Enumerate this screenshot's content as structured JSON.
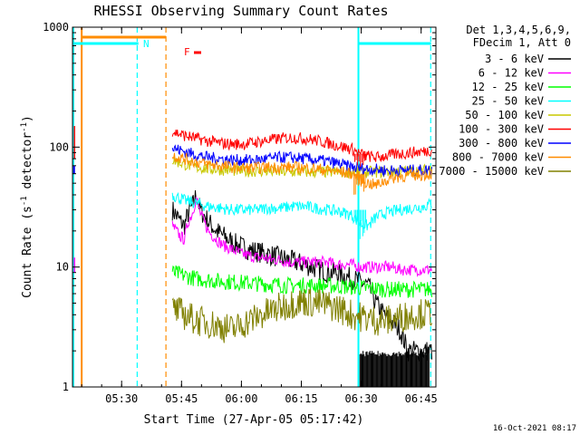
{
  "chart_data": {
    "type": "line",
    "title": "RHESSI Observing Summary Count Rates",
    "xlabel": "Start Time (27-Apr-05 05:17:42)",
    "ylabel_main": "Count Rate (s",
    "ylabel_sup1": "-1",
    "ylabel_mid": " detector",
    "ylabel_sup2": "-1",
    "ylabel_end": ")",
    "x_unit": "minutes after 05:17:42",
    "xlim": [
      0,
      91
    ],
    "ylim": [
      1,
      1000
    ],
    "yscale": "log",
    "x_ticks": [
      {
        "label": "05:30",
        "value": 12.3
      },
      {
        "label": "05:45",
        "value": 27.3
      },
      {
        "label": "06:00",
        "value": 42.3
      },
      {
        "label": "06:15",
        "value": 57.3
      },
      {
        "label": "06:30",
        "value": 72.3
      },
      {
        "label": "06:45",
        "value": 87.3
      }
    ],
    "y_ticks": [
      {
        "label": "1",
        "value": 1
      },
      {
        "label": "10",
        "value": 10
      },
      {
        "label": "100",
        "value": 100
      },
      {
        "label": "1000",
        "value": 1000
      }
    ],
    "legend_header": [
      "Det 1,3,4,5,6,9,",
      "FDecim 1, Att 0"
    ],
    "legend_position": "right",
    "timestamp": "16-Oct-2021 08:17",
    "annotations": [
      {
        "text": "N",
        "color": "#00ffff"
      },
      {
        "text": "F",
        "color": "#ff0000"
      }
    ],
    "series": [
      {
        "name": "3 - 6 keV",
        "color": "#000000",
        "x": [
          25,
          26,
          27,
          28,
          29,
          30,
          31,
          32,
          34,
          36,
          38,
          40,
          42,
          44,
          46,
          48,
          50,
          52,
          54,
          56,
          58,
          60,
          62,
          64,
          66,
          68,
          70,
          72,
          74,
          76,
          78,
          80,
          82,
          84,
          86,
          88,
          90
        ],
        "y": [
          30,
          27,
          24,
          22,
          28,
          32,
          40,
          30,
          24,
          20,
          18,
          16,
          15,
          14,
          13.5,
          13,
          12.5,
          12,
          11.5,
          11,
          10.5,
          10,
          9.5,
          9,
          9,
          8.5,
          8,
          7.5,
          7,
          5,
          4,
          3.5,
          3,
          2,
          2,
          2,
          2
        ]
      },
      {
        "name": "6 - 12 keV",
        "color": "#ff00ff",
        "x": [
          25,
          26,
          27,
          28,
          29,
          30,
          31,
          32,
          34,
          36,
          38,
          40,
          42,
          44,
          46,
          48,
          50,
          52,
          54,
          56,
          58,
          60,
          62,
          64,
          66,
          68,
          70,
          72,
          74,
          76,
          78,
          80,
          82,
          84,
          86,
          88,
          90
        ],
        "y": [
          22,
          20,
          18,
          17,
          24,
          28,
          38,
          28,
          20,
          17,
          15,
          14,
          13,
          12.5,
          12,
          12,
          11.5,
          11.5,
          11,
          11,
          11,
          11,
          11,
          11,
          10.5,
          10.5,
          10.5,
          10,
          10,
          10,
          10,
          10,
          9.5,
          9.5,
          9.5,
          9.5,
          9.5
        ]
      },
      {
        "name": "12 - 25 keV",
        "color": "#00ff00",
        "x": [
          25,
          28,
          31,
          34,
          37,
          40,
          43,
          46,
          49,
          52,
          55,
          58,
          61,
          64,
          67,
          70,
          73,
          76,
          79,
          82,
          85,
          88,
          90
        ],
        "y": [
          9,
          8.5,
          8,
          7.8,
          7.6,
          7.5,
          7.4,
          7.3,
          7.2,
          7.1,
          7,
          7,
          7,
          7,
          6.9,
          6.8,
          6.7,
          6.6,
          6.5,
          6.5,
          6.5,
          6.5,
          6.5
        ]
      },
      {
        "name": "25 - 50 keV",
        "color": "#00ffff",
        "x": [
          25,
          28,
          31,
          34,
          37,
          40,
          43,
          46,
          49,
          52,
          55,
          58,
          61,
          64,
          67,
          70,
          72,
          74,
          76,
          78,
          80,
          82,
          85,
          88,
          90
        ],
        "y": [
          40,
          36,
          34,
          32,
          31,
          30,
          30,
          30,
          31,
          31,
          32,
          32,
          31,
          30,
          29,
          27,
          23,
          22,
          26,
          28,
          29,
          30,
          31,
          32,
          34
        ]
      },
      {
        "name": "50 - 100 keV",
        "color": "#c8c800",
        "x": [
          25,
          28,
          31,
          34,
          37,
          40,
          43,
          46,
          49,
          52,
          55,
          58,
          61,
          64,
          67,
          70,
          73,
          76,
          79,
          82,
          85,
          88,
          90
        ],
        "y": [
          78,
          72,
          68,
          66,
          65,
          64,
          63,
          63,
          63,
          62,
          62,
          62,
          62,
          62,
          62,
          62,
          62,
          62,
          62,
          63,
          63,
          64,
          66
        ]
      },
      {
        "name": "100 - 300 keV",
        "color": "#ff0000",
        "x": [
          25,
          28,
          31,
          34,
          37,
          40,
          43,
          46,
          49,
          52,
          55,
          58,
          61,
          64,
          67,
          70,
          72,
          74,
          76,
          78,
          80,
          82,
          85,
          88,
          90
        ],
        "y": [
          135,
          125,
          118,
          112,
          108,
          106,
          106,
          110,
          114,
          118,
          120,
          118,
          114,
          108,
          102,
          96,
          88,
          84,
          82,
          84,
          86,
          88,
          90,
          92,
          95
        ]
      },
      {
        "name": "300 - 800 keV",
        "color": "#0000ff",
        "x": [
          25,
          28,
          31,
          34,
          37,
          40,
          43,
          46,
          49,
          52,
          55,
          58,
          61,
          64,
          67,
          70,
          73,
          76,
          79,
          82,
          85,
          88,
          90
        ],
        "y": [
          98,
          92,
          86,
          82,
          80,
          78,
          78,
          78,
          80,
          82,
          82,
          80,
          78,
          76,
          72,
          68,
          66,
          65,
          64,
          64,
          64,
          64,
          65
        ]
      },
      {
        "name": "800 - 7000 keV",
        "color": "#ff8c00",
        "x": [
          25,
          28,
          31,
          34,
          37,
          40,
          43,
          46,
          49,
          52,
          55,
          58,
          61,
          64,
          67,
          70,
          72,
          74,
          76,
          78,
          80,
          82,
          85,
          88,
          90
        ],
        "y": [
          85,
          80,
          75,
          72,
          70,
          68,
          67,
          67,
          68,
          68,
          68,
          67,
          66,
          64,
          62,
          60,
          55,
          50,
          48,
          52,
          55,
          57,
          58,
          59,
          60
        ]
      },
      {
        "name": "7000 - 15000 keV",
        "color": "#808000",
        "x": [
          25,
          28,
          31,
          34,
          37,
          40,
          43,
          46,
          49,
          52,
          55,
          58,
          61,
          64,
          67,
          70,
          73,
          76,
          79,
          82,
          85,
          88,
          90
        ],
        "y": [
          4.5,
          4,
          3.6,
          3.4,
          3.2,
          3,
          3.4,
          3.8,
          4.2,
          4.6,
          5,
          5.2,
          5,
          4.8,
          4.5,
          4,
          3.8,
          3.6,
          3.6,
          3.8,
          4,
          4.1,
          4.2
        ]
      }
    ]
  }
}
